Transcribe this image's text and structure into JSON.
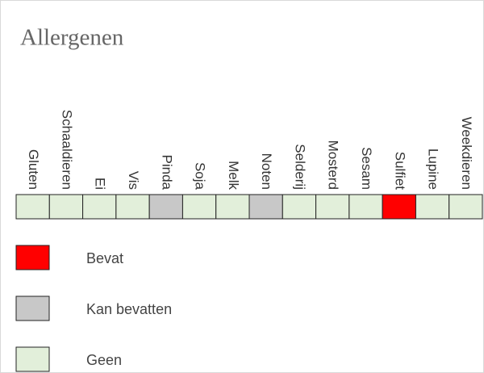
{
  "title": "Allergenen",
  "allergens": [
    {
      "name": "Gluten",
      "color": "#e2efda"
    },
    {
      "name": "Schaaldieren",
      "color": "#e2efda"
    },
    {
      "name": "Ei",
      "color": "#e2efda"
    },
    {
      "name": "Vis",
      "color": "#e2efda"
    },
    {
      "name": "Pinda",
      "color": "#c8c8c8"
    },
    {
      "name": "Soja",
      "color": "#e2efda"
    },
    {
      "name": "Melk",
      "color": "#e2efda"
    },
    {
      "name": "Noten",
      "color": "#c8c8c8"
    },
    {
      "name": "Selderij",
      "color": "#e2efda"
    },
    {
      "name": "Mosterd",
      "color": "#e2efda"
    },
    {
      "name": "Sesam",
      "color": "#e2efda"
    },
    {
      "name": "Sulfiet",
      "color": "#ff0000"
    },
    {
      "name": "Lupine",
      "color": "#e2efda"
    },
    {
      "name": "Weekdieren",
      "color": "#e2efda"
    }
  ],
  "legend": [
    {
      "label": "Bevat",
      "color": "#ff0000"
    },
    {
      "label": "Kan bevatten",
      "color": "#c8c8c8"
    },
    {
      "label": "Geen",
      "color": "#e2efda"
    }
  ]
}
